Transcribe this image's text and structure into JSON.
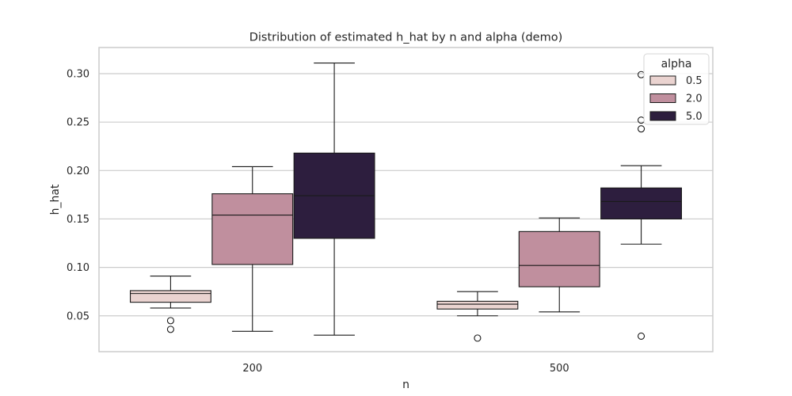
{
  "chart_data": {
    "type": "box",
    "title": "Distribution of estimated h_hat by n and alpha (demo)",
    "xlabel": "n",
    "ylabel": "h_hat",
    "categories": [
      "200",
      "500"
    ],
    "ylim": [
      0.013,
      0.327
    ],
    "yticks": [
      0.05,
      0.1,
      0.15,
      0.2,
      0.25,
      0.3
    ],
    "ytick_labels": [
      "0.05",
      "0.10",
      "0.15",
      "0.20",
      "0.25",
      "0.30"
    ],
    "grid": "horizontal",
    "legend": {
      "title": "alpha",
      "placement": "top-right",
      "entries": [
        "0.5",
        "2.0",
        "5.0"
      ]
    },
    "series": [
      {
        "name": "0.5",
        "color": "#ead3d0",
        "boxes": [
          {
            "category": "200",
            "whisker_low": 0.058,
            "q1": 0.064,
            "median": 0.073,
            "q3": 0.076,
            "whisker_high": 0.091,
            "outliers": [
              0.045,
              0.036
            ]
          },
          {
            "category": "500",
            "whisker_low": 0.05,
            "q1": 0.057,
            "median": 0.062,
            "q3": 0.065,
            "whisker_high": 0.075,
            "outliers": [
              0.027
            ]
          }
        ]
      },
      {
        "name": "2.0",
        "color": "#c08f9e",
        "boxes": [
          {
            "category": "200",
            "whisker_low": 0.034,
            "q1": 0.103,
            "median": 0.154,
            "q3": 0.176,
            "whisker_high": 0.204,
            "outliers": []
          },
          {
            "category": "500",
            "whisker_low": 0.054,
            "q1": 0.08,
            "median": 0.102,
            "q3": 0.137,
            "whisker_high": 0.151,
            "outliers": []
          }
        ]
      },
      {
        "name": "5.0",
        "color": "#2d1e3e",
        "boxes": [
          {
            "category": "200",
            "whisker_low": 0.03,
            "q1": 0.13,
            "median": 0.174,
            "q3": 0.218,
            "whisker_high": 0.311,
            "outliers": []
          },
          {
            "category": "500",
            "whisker_low": 0.124,
            "q1": 0.15,
            "median": 0.168,
            "q3": 0.182,
            "whisker_high": 0.205,
            "outliers": [
              0.299,
              0.252,
              0.243,
              0.029
            ]
          }
        ]
      }
    ]
  }
}
